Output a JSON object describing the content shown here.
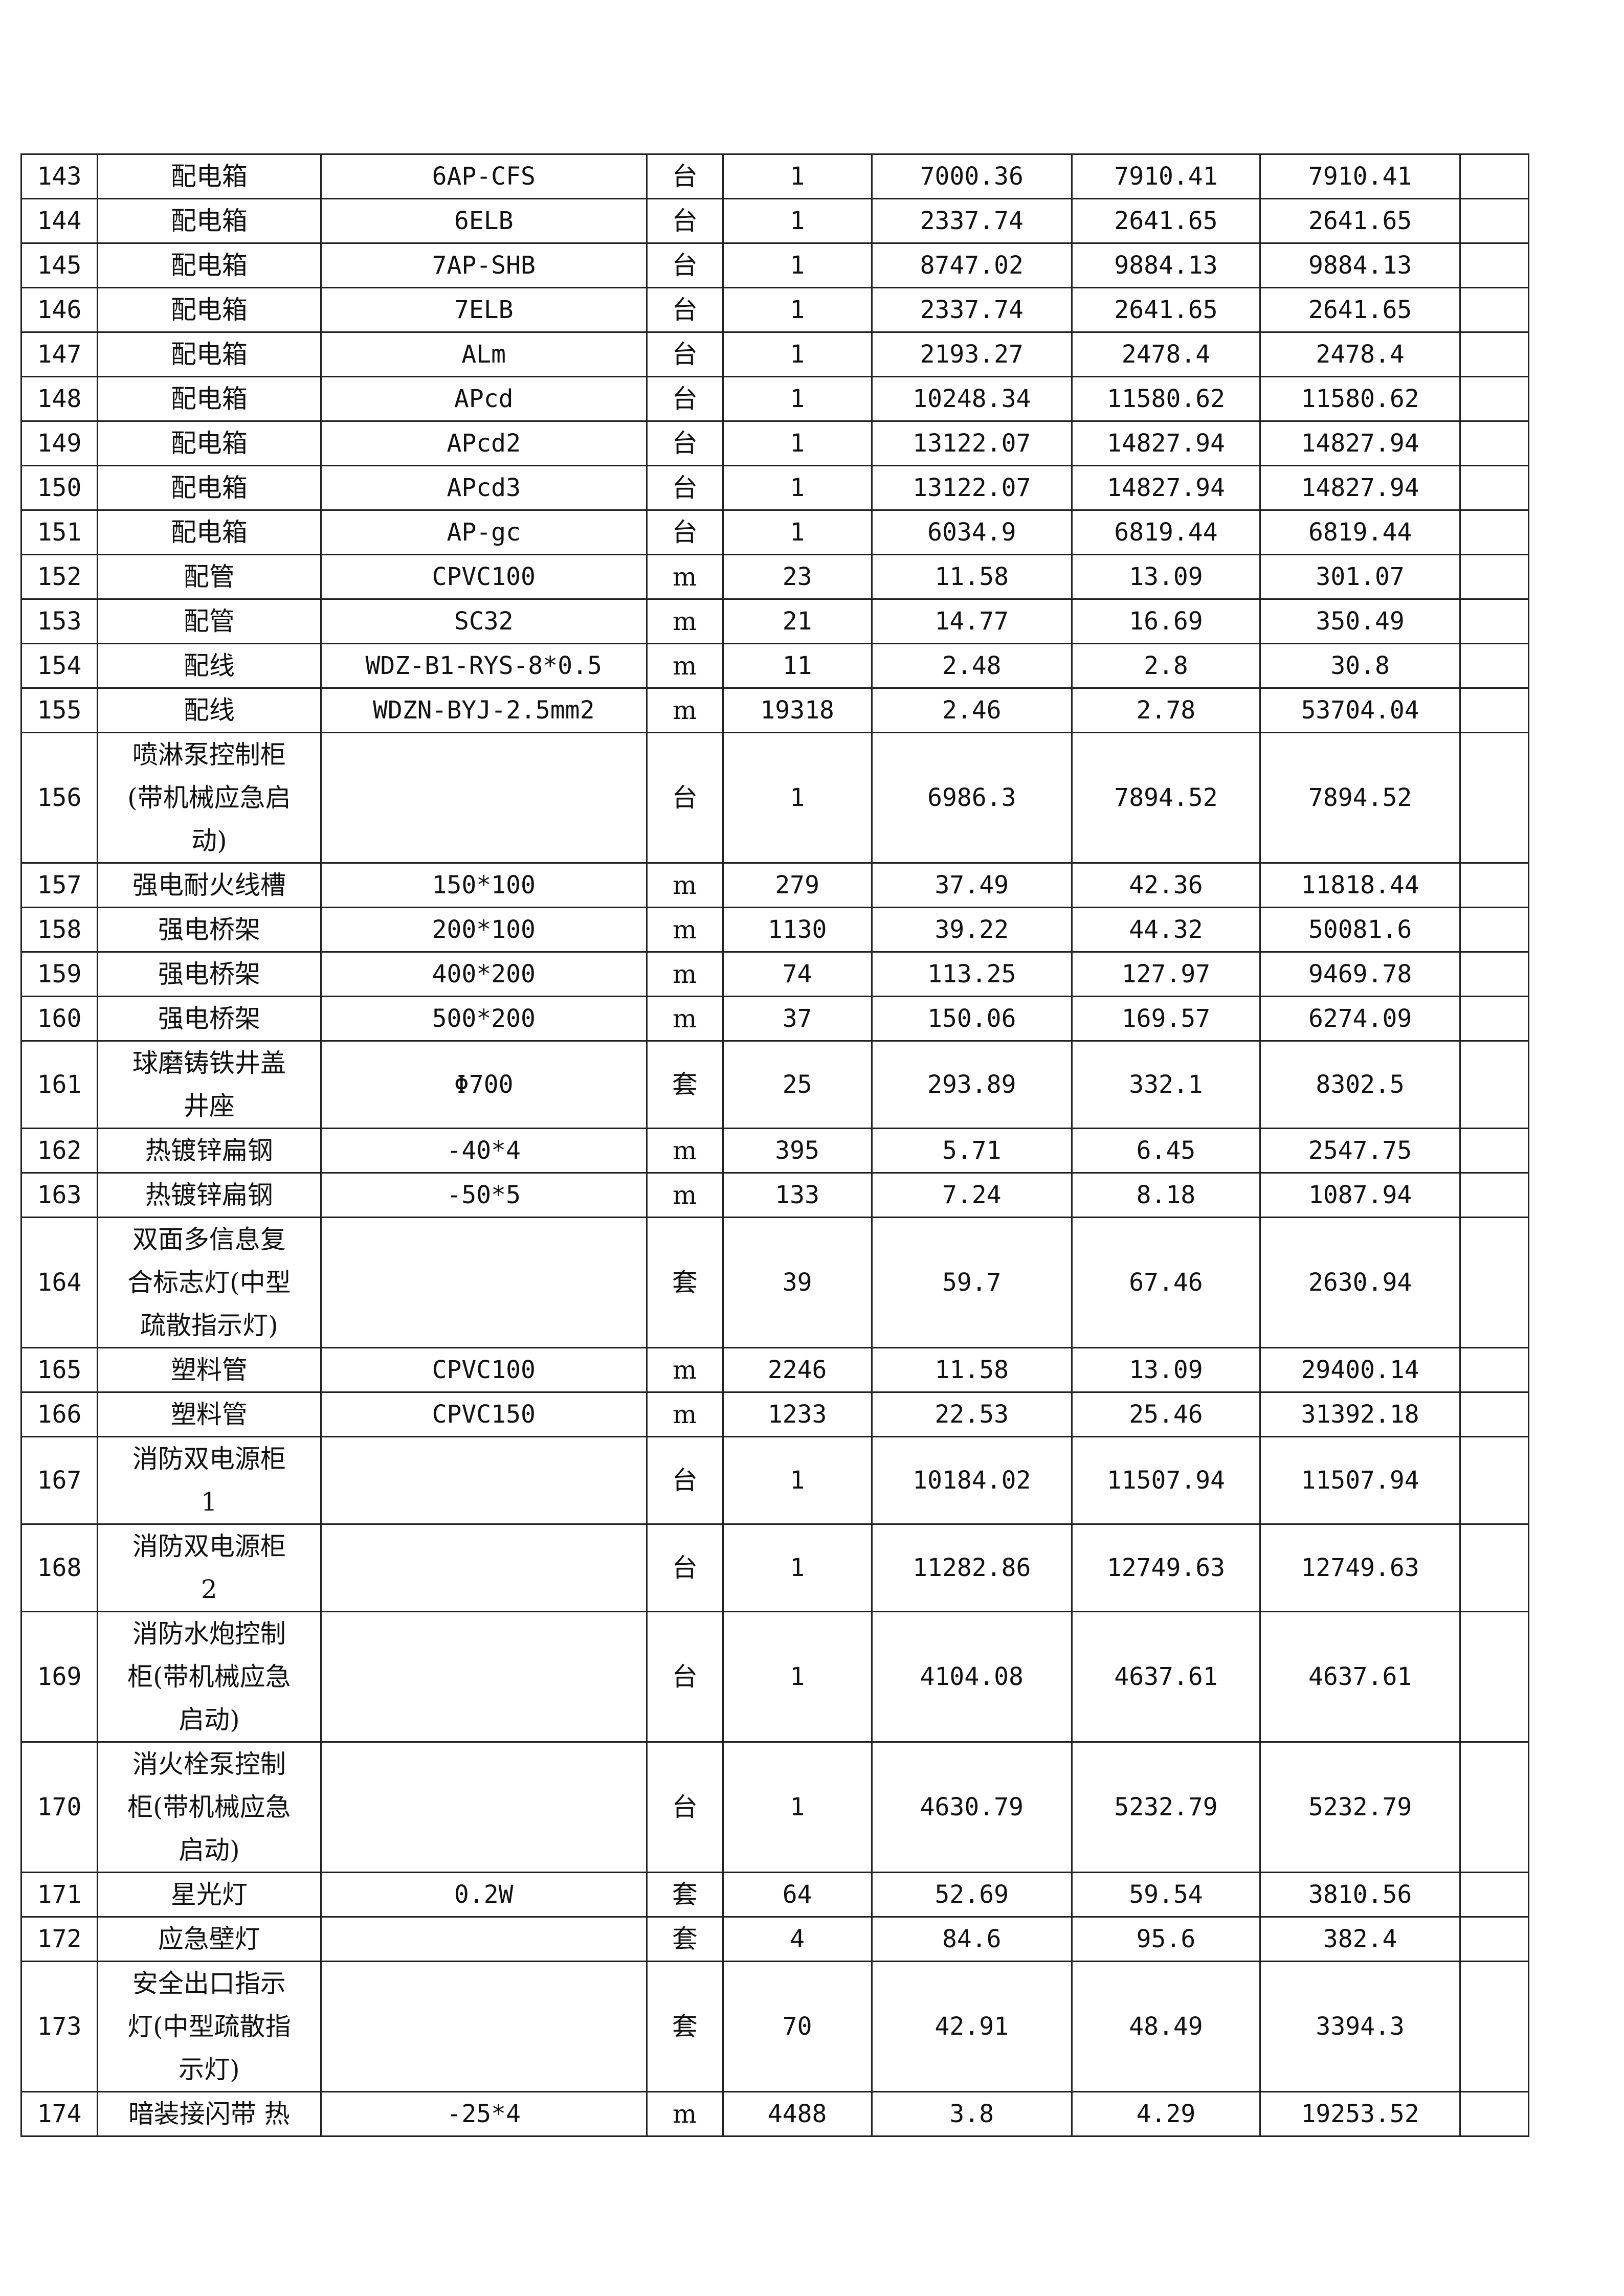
{
  "rows": [
    {
      "no": "143",
      "name": "配电箱",
      "spec": "6AP-CFS",
      "unit": "台",
      "qty": "1",
      "price": "7000.36",
      "price2": "7910.41",
      "total": "7910.41",
      "lines": 1
    },
    {
      "no": "144",
      "name": "配电箱",
      "spec": "6ELB",
      "unit": "台",
      "qty": "1",
      "price": "2337.74",
      "price2": "2641.65",
      "total": "2641.65",
      "lines": 1
    },
    {
      "no": "145",
      "name": "配电箱",
      "spec": "7AP-SHB",
      "unit": "台",
      "qty": "1",
      "price": "8747.02",
      "price2": "9884.13",
      "total": "9884.13",
      "lines": 1
    },
    {
      "no": "146",
      "name": "配电箱",
      "spec": "7ELB",
      "unit": "台",
      "qty": "1",
      "price": "2337.74",
      "price2": "2641.65",
      "total": "2641.65",
      "lines": 1
    },
    {
      "no": "147",
      "name": "配电箱",
      "spec": "ALm",
      "unit": "台",
      "qty": "1",
      "price": "2193.27",
      "price2": "2478.4",
      "total": "2478.4",
      "lines": 1
    },
    {
      "no": "148",
      "name": "配电箱",
      "spec": "APcd",
      "unit": "台",
      "qty": "1",
      "price": "10248.34",
      "price2": "11580.62",
      "total": "11580.62",
      "lines": 1
    },
    {
      "no": "149",
      "name": "配电箱",
      "spec": "APcd2",
      "unit": "台",
      "qty": "1",
      "price": "13122.07",
      "price2": "14827.94",
      "total": "14827.94",
      "lines": 1
    },
    {
      "no": "150",
      "name": "配电箱",
      "spec": "APcd3",
      "unit": "台",
      "qty": "1",
      "price": "13122.07",
      "price2": "14827.94",
      "total": "14827.94",
      "lines": 1
    },
    {
      "no": "151",
      "name": "配电箱",
      "spec": "AP-gc",
      "unit": "台",
      "qty": "1",
      "price": "6034.9",
      "price2": "6819.44",
      "total": "6819.44",
      "lines": 1
    },
    {
      "no": "152",
      "name": "配管",
      "spec": "CPVC100",
      "unit": "m",
      "qty": "23",
      "price": "11.58",
      "price2": "13.09",
      "total": "301.07",
      "lines": 1
    },
    {
      "no": "153",
      "name": "配管",
      "spec": "SC32",
      "unit": "m",
      "qty": "21",
      "price": "14.77",
      "price2": "16.69",
      "total": "350.49",
      "lines": 1
    },
    {
      "no": "154",
      "name": "配线",
      "spec": "WDZ-B1-RYS-8*0.5",
      "unit": "m",
      "qty": "11",
      "price": "2.48",
      "price2": "2.8",
      "total": "30.8",
      "lines": 1
    },
    {
      "no": "155",
      "name": "配线",
      "spec": "WDZN-BYJ-2.5mm2",
      "unit": "m",
      "qty": "19318",
      "price": "2.46",
      "price2": "2.78",
      "total": "53704.04",
      "lines": 1
    },
    {
      "no": "156",
      "name": "喷淋泵控制柜\n(带机械应急启\n动)",
      "spec": "",
      "unit": "台",
      "qty": "1",
      "price": "6986.3",
      "price2": "7894.52",
      "total": "7894.52",
      "lines": 3
    },
    {
      "no": "157",
      "name": "强电耐火线槽",
      "spec": "150*100",
      "unit": "m",
      "qty": "279",
      "price": "37.49",
      "price2": "42.36",
      "total": "11818.44",
      "lines": 1
    },
    {
      "no": "158",
      "name": "强电桥架",
      "spec": "200*100",
      "unit": "m",
      "qty": "1130",
      "price": "39.22",
      "price2": "44.32",
      "total": "50081.6",
      "lines": 1
    },
    {
      "no": "159",
      "name": "强电桥架",
      "spec": "400*200",
      "unit": "m",
      "qty": "74",
      "price": "113.25",
      "price2": "127.97",
      "total": "9469.78",
      "lines": 1
    },
    {
      "no": "160",
      "name": "强电桥架",
      "spec": "500*200",
      "unit": "m",
      "qty": "37",
      "price": "150.06",
      "price2": "169.57",
      "total": "6274.09",
      "lines": 1
    },
    {
      "no": "161",
      "name": "球磨铸铁井盖\n井座",
      "spec": "Φ700",
      "unit": "套",
      "qty": "25",
      "price": "293.89",
      "price2": "332.1",
      "total": "8302.5",
      "lines": 2
    },
    {
      "no": "162",
      "name": "热镀锌扁钢",
      "spec": "-40*4",
      "unit": "m",
      "qty": "395",
      "price": "5.71",
      "price2": "6.45",
      "total": "2547.75",
      "lines": 1
    },
    {
      "no": "163",
      "name": "热镀锌扁钢",
      "spec": "-50*5",
      "unit": "m",
      "qty": "133",
      "price": "7.24",
      "price2": "8.18",
      "total": "1087.94",
      "lines": 1
    },
    {
      "no": "164",
      "name": "双面多信息复\n合标志灯(中型\n疏散指示灯)",
      "spec": "",
      "unit": "套",
      "qty": "39",
      "price": "59.7",
      "price2": "67.46",
      "total": "2630.94",
      "lines": 3
    },
    {
      "no": "165",
      "name": "塑料管",
      "spec": "CPVC100",
      "unit": "m",
      "qty": "2246",
      "price": "11.58",
      "price2": "13.09",
      "total": "29400.14",
      "lines": 1
    },
    {
      "no": "166",
      "name": "塑料管",
      "spec": "CPVC150",
      "unit": "m",
      "qty": "1233",
      "price": "22.53",
      "price2": "25.46",
      "total": "31392.18",
      "lines": 1
    },
    {
      "no": "167",
      "name": "消防双电源柜\n1",
      "spec": "",
      "unit": "台",
      "qty": "1",
      "price": "10184.02",
      "price2": "11507.94",
      "total": "11507.94",
      "lines": 2
    },
    {
      "no": "168",
      "name": "消防双电源柜\n2",
      "spec": "",
      "unit": "台",
      "qty": "1",
      "price": "11282.86",
      "price2": "12749.63",
      "total": "12749.63",
      "lines": 2
    },
    {
      "no": "169",
      "name": "消防水炮控制\n柜(带机械应急\n启动)",
      "spec": "",
      "unit": "台",
      "qty": "1",
      "price": "4104.08",
      "price2": "4637.61",
      "total": "4637.61",
      "lines": 3
    },
    {
      "no": "170",
      "name": "消火栓泵控制\n柜(带机械应急\n启动)",
      "spec": "",
      "unit": "台",
      "qty": "1",
      "price": "4630.79",
      "price2": "5232.79",
      "total": "5232.79",
      "lines": 3
    },
    {
      "no": "171",
      "name": "星光灯",
      "spec": "0.2W",
      "unit": "套",
      "qty": "64",
      "price": "52.69",
      "price2": "59.54",
      "total": "3810.56",
      "lines": 1
    },
    {
      "no": "172",
      "name": "应急壁灯",
      "spec": "",
      "unit": "套",
      "qty": "4",
      "price": "84.6",
      "price2": "95.6",
      "total": "382.4",
      "lines": 1
    },
    {
      "no": "173",
      "name": "安全出口指示\n灯(中型疏散指\n示灯)",
      "spec": "",
      "unit": "套",
      "qty": "70",
      "price": "42.91",
      "price2": "48.49",
      "total": "3394.3",
      "lines": 3
    },
    {
      "no": "174",
      "name": "暗装接闪带 热",
      "spec": "-25*4",
      "unit": "m",
      "qty": "4488",
      "price": "3.8",
      "price2": "4.29",
      "total": "19253.52",
      "lines": 1
    }
  ]
}
